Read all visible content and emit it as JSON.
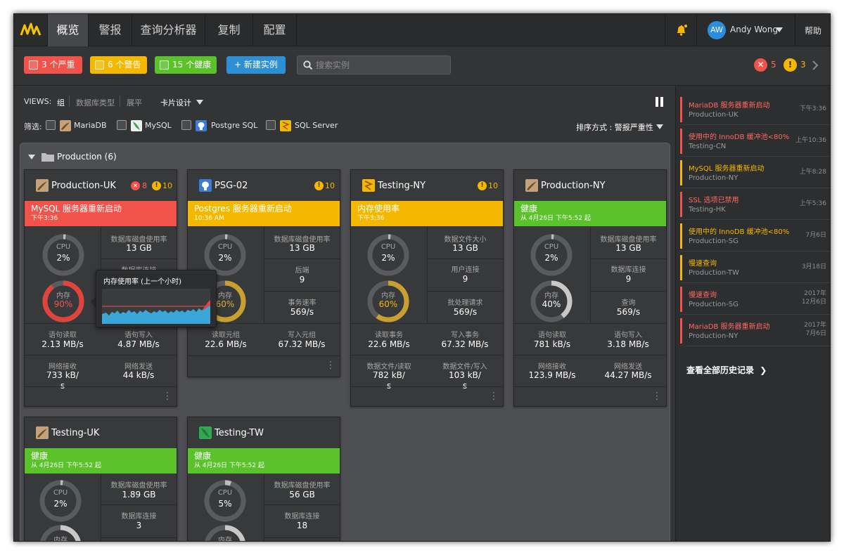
{
  "nav": {
    "tabs": [
      "概览",
      "警报",
      "查询分析器",
      "复制",
      "配置"
    ],
    "user": {
      "initials": "AW",
      "name": "Andy Wong"
    },
    "help": "帮助"
  },
  "filterbar": {
    "critical": "3 个严重",
    "warning": "6 个警告",
    "healthy": "15 个健康",
    "new_instance": "+ 新建实例",
    "search_placeholder": "搜索实例",
    "critical_count": "5",
    "warning_count": "3"
  },
  "views": {
    "label": "VIEWS:",
    "options": [
      "组",
      "数据库类型",
      "展平"
    ],
    "design": "卡片设计"
  },
  "filters": {
    "label": "筛选:",
    "types": [
      "MariaDB",
      "MySQL",
      "Postgre SQL",
      "SQL Server"
    ],
    "sort": "排序方式 : 警报严重性"
  },
  "group": {
    "title": "Production (6)"
  },
  "cards": [
    {
      "name": "Production-UK",
      "critical": "8",
      "warning": "10",
      "status": "MySQL 服务器重新启动",
      "status_time": "下午3:36",
      "cpu_label": "CPU",
      "cpu": "2%",
      "mem_label": "内存",
      "mem": "90%",
      "r1_label": "数据库磁盘使用率",
      "r1": "13 GB",
      "r2_label": "数据库连接",
      "r2": "",
      "b1_label": "语句读取",
      "b1": "2.13 MB/s",
      "b2_label": "语句写入",
      "b2": "4.87 MB/s",
      "c1_label": "网络接收",
      "c1": "733 kB/\ns",
      "c2_label": "网络发送",
      "c2": "44 kB/s"
    },
    {
      "name": "PSG-02",
      "warning": "10",
      "status": "Postgres 服务器重新启动",
      "status_time": "10:36 AM",
      "cpu_label": "CPU",
      "cpu": "2%",
      "mem_label": "内存",
      "mem": "60%",
      "r1_label": "数据库磁盘使用率",
      "r1": "13 GB",
      "r2_label": "后端",
      "r2": "9",
      "r3_label": "事务速率",
      "r3": "569/s",
      "b1_label": "读取元组",
      "b1": "22.6 MB/s",
      "b2_label": "写入元组",
      "b2": "67.32 MB/s"
    },
    {
      "name": "Testing-NY",
      "warning": "10",
      "status": "内存使用率",
      "status_time": "下午3:36",
      "cpu_label": "CPU",
      "cpu": "2%",
      "mem_label": "内存",
      "mem": "60%",
      "r1_label": "数据文件大小",
      "r1": "13 GB",
      "r2_label": "用户连接",
      "r2": "9",
      "r3_label": "批处理请求",
      "r3": "569/s",
      "b1_label": "读取事务",
      "b1": "22.6 MB/s",
      "b2_label": "写入事务",
      "b2": "67.32 MB/s",
      "c1_label": "数据文件/读取",
      "c1": "782 kB/\ns",
      "c2_label": "数据文件/写入",
      "c2": "103 kB/\ns"
    },
    {
      "name": "Production-NY",
      "status": "健康",
      "status_time": "从 4月26日 下午5:52 起",
      "cpu_label": "CPU",
      "cpu": "2%",
      "mem_label": "内存",
      "mem": "40%",
      "r1_label": "数据库磁盘使用率",
      "r1": "13 GB",
      "r2_label": "数据库连接",
      "r2": "9",
      "r3_label": "查询",
      "r3": "569/s",
      "b1_label": "语句读取",
      "b1": "781 kB/s",
      "b2_label": "语句写入",
      "b2": "3.18 MB/s",
      "c1_label": "网络接收",
      "c1": "123.9 MB/s",
      "c2_label": "网络发送",
      "c2": "44.27 MB/s"
    },
    {
      "name": "Testing-UK",
      "status": "健康",
      "status_time": "从 4月26日 下午5:52 起",
      "cpu_label": "CPU",
      "cpu": "2%",
      "mem_label": "内存",
      "r1_label": "数据库磁盘使用率",
      "r1": "1.89 GB",
      "r2_label": "数据库连接",
      "r2": "3"
    },
    {
      "name": "Testing-TW",
      "status": "健康",
      "status_time": "从 4月26日 下午5:52 起",
      "cpu_label": "CPU",
      "cpu": "5%",
      "mem_label": "内存",
      "r1_label": "数据库磁盘使用率",
      "r1": "56 GB",
      "r2_label": "数据库连接",
      "r2": "18"
    }
  ],
  "tooltip": {
    "title": "内存使用率 (上一个小时)"
  },
  "history": {
    "items": [
      {
        "title": "MariaDB 服务器重新启动",
        "sub": "Production-UK",
        "time": "下午3:36",
        "level": "critical"
      },
      {
        "title": "使用中的 InnoDB 缓冲池<80%",
        "sub": "Testing-CN",
        "time": "上午10:36",
        "level": "critical"
      },
      {
        "title": "MySQL 服务器重新启动",
        "sub": "Production-NY",
        "time": "上午8:28",
        "level": "warning"
      },
      {
        "title": "SSL 选项已禁用",
        "sub": "Testing-HK",
        "time": "上午5:36",
        "level": "critical"
      },
      {
        "title": "使用中的 InnoDB 缓冲池<80%",
        "sub": "Production-SG",
        "time": "7月6日",
        "level": "warning"
      },
      {
        "title": "慢速查询",
        "sub": "Production-TW",
        "time": "3月18日",
        "level": "warning"
      },
      {
        "title": "慢速查询",
        "sub": "Production-SG",
        "time": "2017年\n12月6日",
        "level": "critical"
      },
      {
        "title": "MariaDB 服务器重新启动",
        "sub": "Production-NY",
        "time": "2017年\n7月6日",
        "level": "critical"
      }
    ],
    "view_all": "查看全部历史记录"
  },
  "colors": {
    "critical": "#f1534b",
    "warning": "#f5b800",
    "healthy": "#5cc22b",
    "accent": "#2d8fd4",
    "critical_text": "#ff6b5f",
    "warning_text": "#f5b800"
  }
}
